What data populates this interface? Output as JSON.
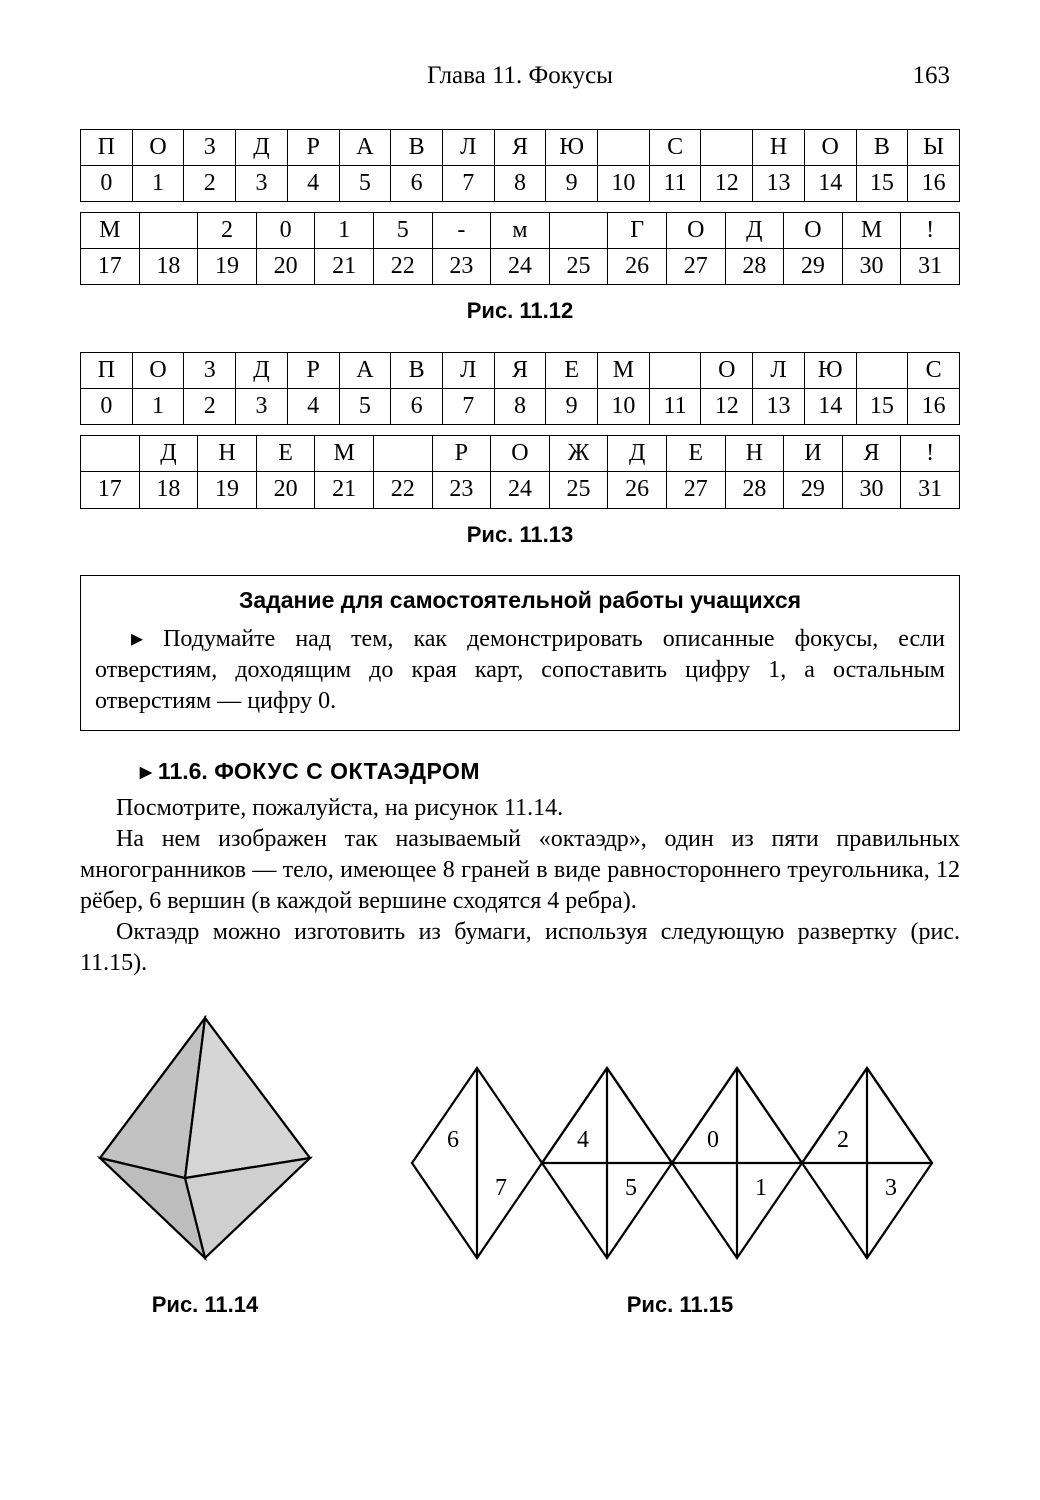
{
  "header": {
    "chapter": "Глава 11. Фокусы",
    "page": "163"
  },
  "tables": {
    "t1a": {
      "cols": 17,
      "letters": [
        "П",
        "О",
        "3",
        "Д",
        "Р",
        "А",
        "В",
        "Л",
        "Я",
        "Ю",
        "",
        "С",
        "",
        "Н",
        "О",
        "В",
        "Ы"
      ],
      "nums": [
        "0",
        "1",
        "2",
        "3",
        "4",
        "5",
        "6",
        "7",
        "8",
        "9",
        "10",
        "11",
        "12",
        "13",
        "14",
        "15",
        "16"
      ]
    },
    "t1b": {
      "cols": 15,
      "letters": [
        "М",
        "",
        "2",
        "0",
        "1",
        "5",
        "-",
        "м",
        "",
        "Г",
        "О",
        "Д",
        "О",
        "М",
        "!"
      ],
      "nums": [
        "17",
        "18",
        "19",
        "20",
        "21",
        "22",
        "23",
        "24",
        "25",
        "26",
        "27",
        "28",
        "29",
        "30",
        "31"
      ]
    },
    "t2a": {
      "cols": 17,
      "letters": [
        "П",
        "О",
        "3",
        "Д",
        "Р",
        "А",
        "В",
        "Л",
        "Я",
        "Е",
        "М",
        "",
        "О",
        "Л",
        "Ю",
        "",
        "С"
      ],
      "nums": [
        "0",
        "1",
        "2",
        "3",
        "4",
        "5",
        "6",
        "7",
        "8",
        "9",
        "10",
        "11",
        "12",
        "13",
        "14",
        "15",
        "16"
      ]
    },
    "t2b": {
      "cols": 15,
      "letters": [
        "",
        "Д",
        "Н",
        "Е",
        "М",
        "",
        "Р",
        "О",
        "Ж",
        "Д",
        "Е",
        "Н",
        "И",
        "Я",
        "!"
      ],
      "nums": [
        "17",
        "18",
        "19",
        "20",
        "21",
        "22",
        "23",
        "24",
        "25",
        "26",
        "27",
        "28",
        "29",
        "30",
        "31"
      ]
    }
  },
  "captions": {
    "fig12": "Рис. 11.12",
    "fig13": "Рис. 11.13",
    "fig14": "Рис. 11.14",
    "fig15": "Рис. 11.15"
  },
  "task": {
    "title": "Задание для самостоятельной работы учащихся",
    "body": "▸ Подумайте над тем, как демонстрировать описанные фокусы, если отверстиям, доходящим до края карт, сопоставить цифру 1, а остальным отверстиям — цифру 0."
  },
  "section": {
    "heading_prefix": "▸ 11.6. ",
    "heading_word1": "Ф",
    "heading_rest": "ОКУС С ОКТАЭДРОМ",
    "p1": "Посмотрите, пожалуйста, на рисунок 11.14.",
    "p2": "На нем изображен так называемый «октаэдр», один из пяти правильных многогранников — тело, имеющее 8 граней в виде равностороннего треугольника, 12 рёбер, 6 вершин (в каждой вершине сходятся 4 ребра).",
    "p3": "Октаэдр можно изготовить из бумаги, используя следующую развертку (рис. 11.15)."
  },
  "net": {
    "labels": [
      "6",
      "4",
      "0",
      "2",
      "7",
      "5",
      "1",
      "3"
    ],
    "stroke": "#000000",
    "stroke_width": 2.2,
    "fontsize": 24
  },
  "octa": {
    "fill_top": "#e8e8e8",
    "fill_left": "#c2c2c2",
    "fill_right": "#d6d6d6",
    "fill_bottom": "#bdbdbd",
    "stroke": "#000000"
  }
}
